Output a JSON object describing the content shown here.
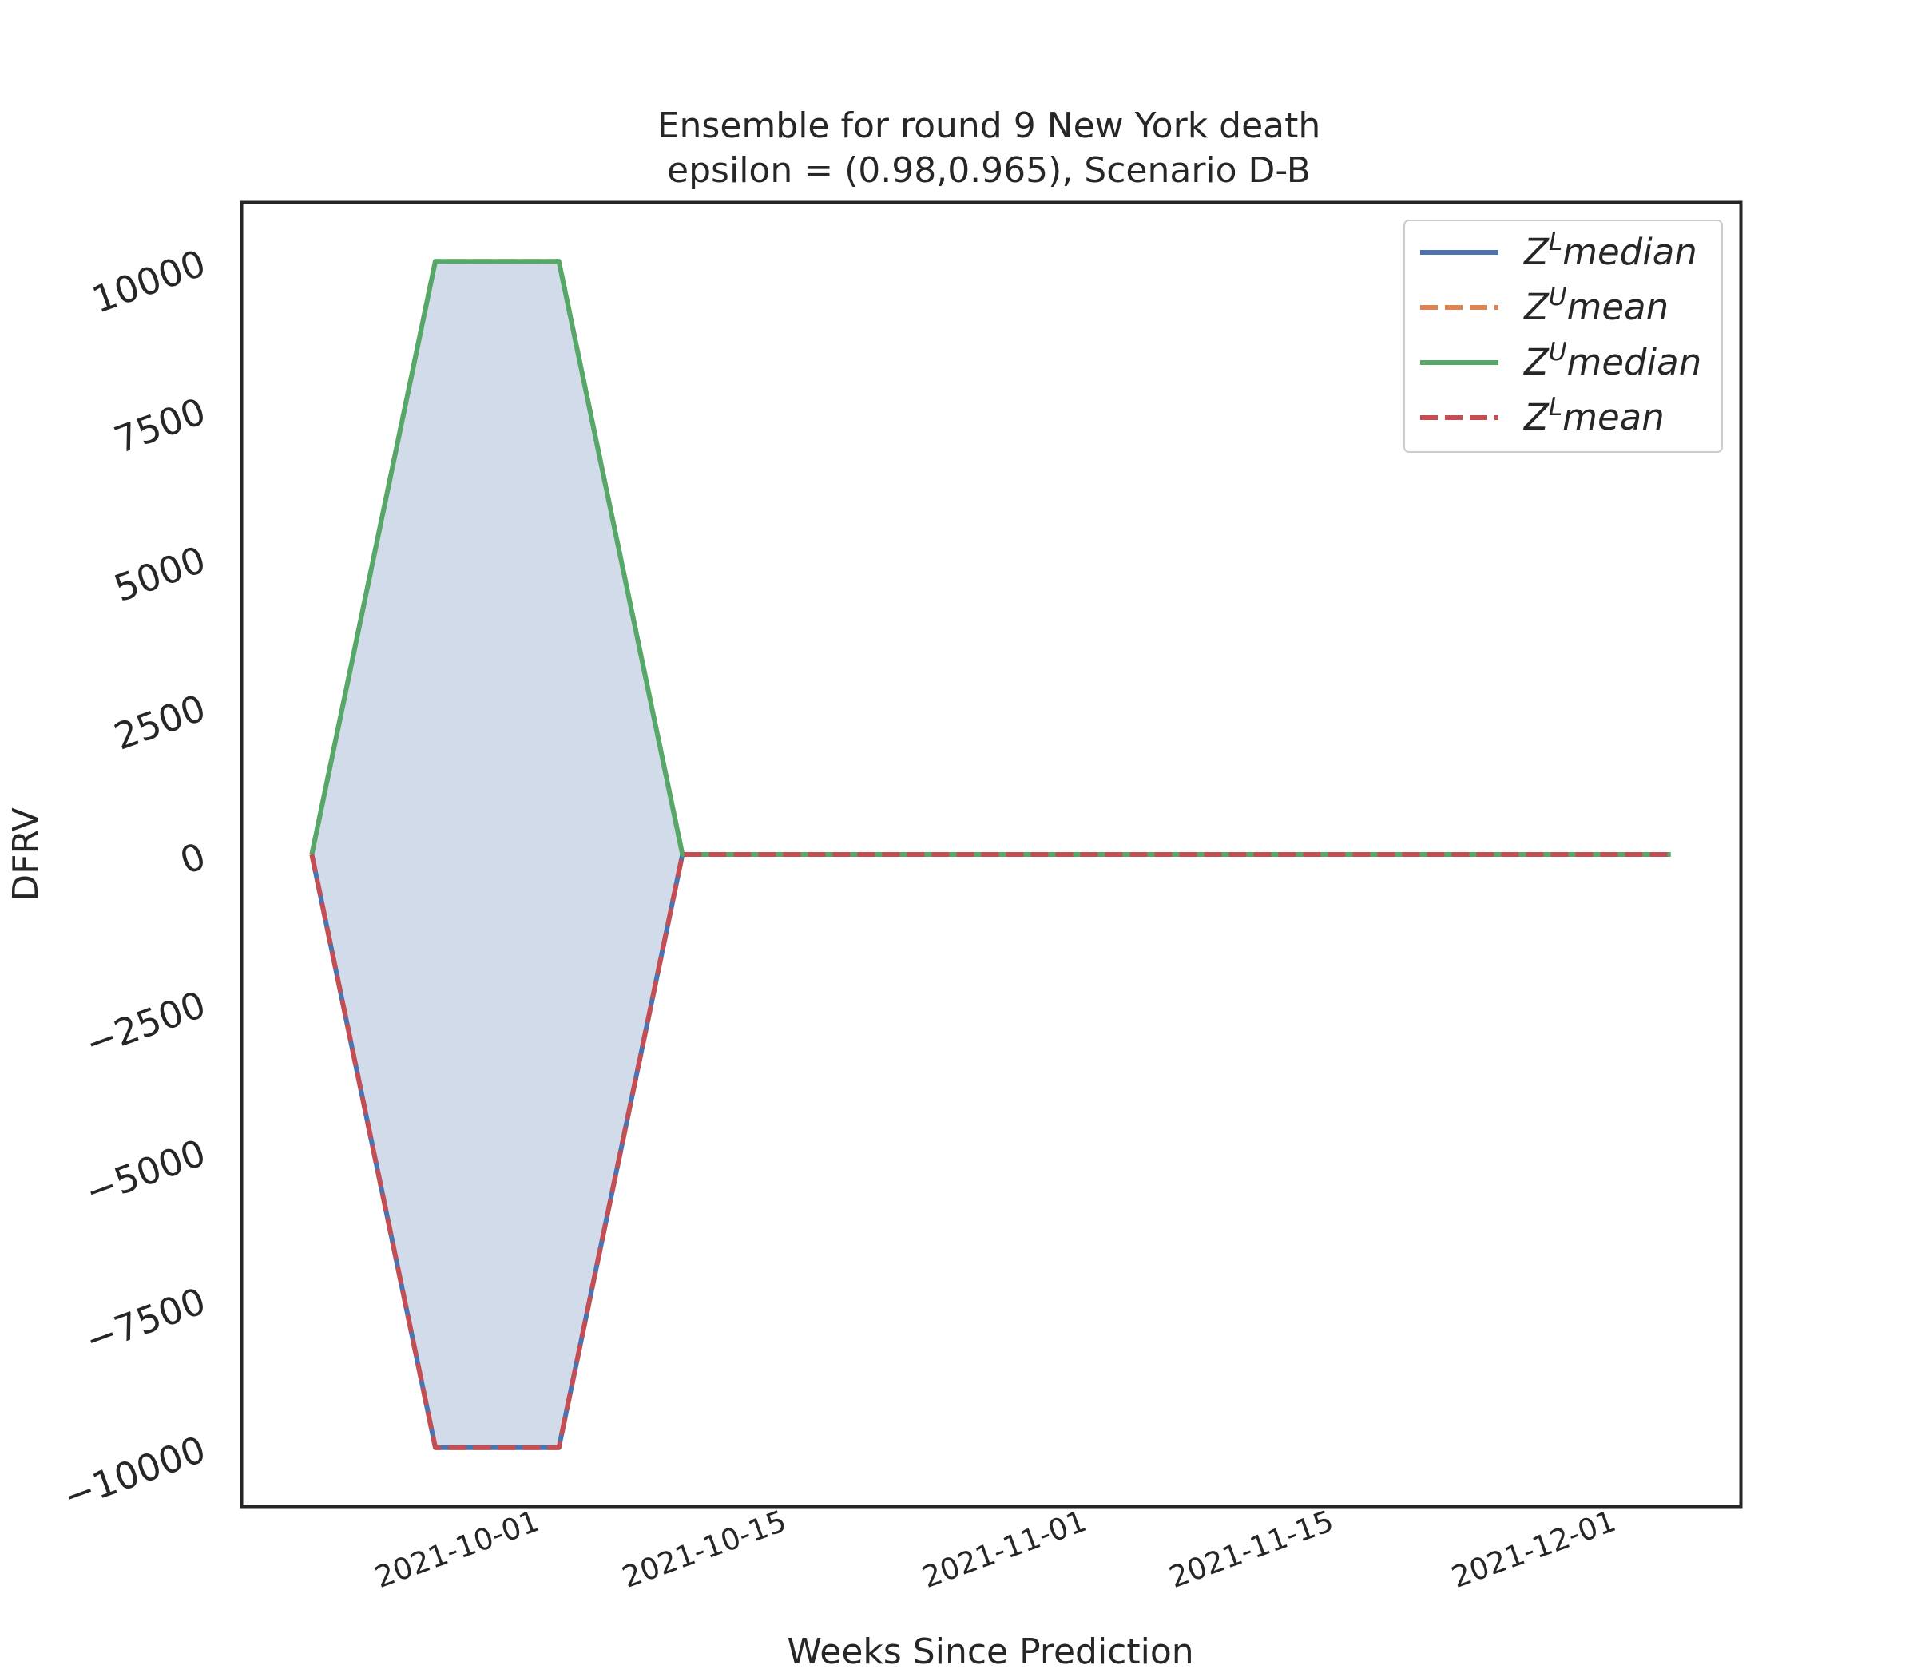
{
  "chart_data": {
    "type": "line",
    "title": "Ensemble for round 9 New York  death",
    "subtitle": "epsilon = (0.98,0.965), Scenario D-B",
    "xlabel": "Weeks Since Prediction",
    "ylabel": "DFRV",
    "x": [
      "2021-09-18",
      "2021-09-25",
      "2021-10-02",
      "2021-10-09",
      "2021-10-16",
      "2021-10-23",
      "2021-10-30",
      "2021-11-06",
      "2021-11-13",
      "2021-11-20",
      "2021-11-27",
      "2021-12-04"
    ],
    "xlim": [
      "2021-09-14",
      "2021-12-08"
    ],
    "ylim": [
      -11000,
      11000
    ],
    "x_ticks": [
      "2021-10-01",
      "2021-10-15",
      "2021-11-01",
      "2021-11-15",
      "2021-12-01"
    ],
    "y_ticks": [
      -10000,
      -7500,
      -5000,
      -2500,
      0,
      2500,
      5000,
      7500,
      10000
    ],
    "grid": false,
    "legend_position": "top-right",
    "band": {
      "lower_series": "Z^L median",
      "upper_series": "Z^U median",
      "color": "#d2dbea"
    },
    "series": [
      {
        "name": "Z^L median",
        "style": "solid",
        "color": "#4c72b0",
        "values": [
          0,
          -10000,
          -10000,
          0,
          0,
          0,
          0,
          0,
          0,
          0,
          0,
          0
        ]
      },
      {
        "name": "Z^U mean",
        "style": "dashed",
        "color": "#dd8452",
        "values": [
          0,
          10000,
          10000,
          0,
          0,
          0,
          0,
          0,
          0,
          0,
          0,
          0
        ]
      },
      {
        "name": "Z^U median",
        "style": "solid",
        "color": "#55a868",
        "values": [
          0,
          10000,
          10000,
          0,
          0,
          0,
          0,
          0,
          0,
          0,
          0,
          0
        ]
      },
      {
        "name": "Z^L mean",
        "style": "dashed",
        "color": "#c44e52",
        "values": [
          0,
          -10000,
          -10000,
          0,
          0,
          0,
          0,
          0,
          0,
          0,
          0,
          0
        ]
      }
    ],
    "legend": [
      {
        "base": "Z",
        "sup": "L",
        "text": "median"
      },
      {
        "base": "Z",
        "sup": "U",
        "text": "mean"
      },
      {
        "base": "Z",
        "sup": "U",
        "text": "median"
      },
      {
        "base": "Z",
        "sup": "L",
        "text": "mean"
      }
    ]
  }
}
